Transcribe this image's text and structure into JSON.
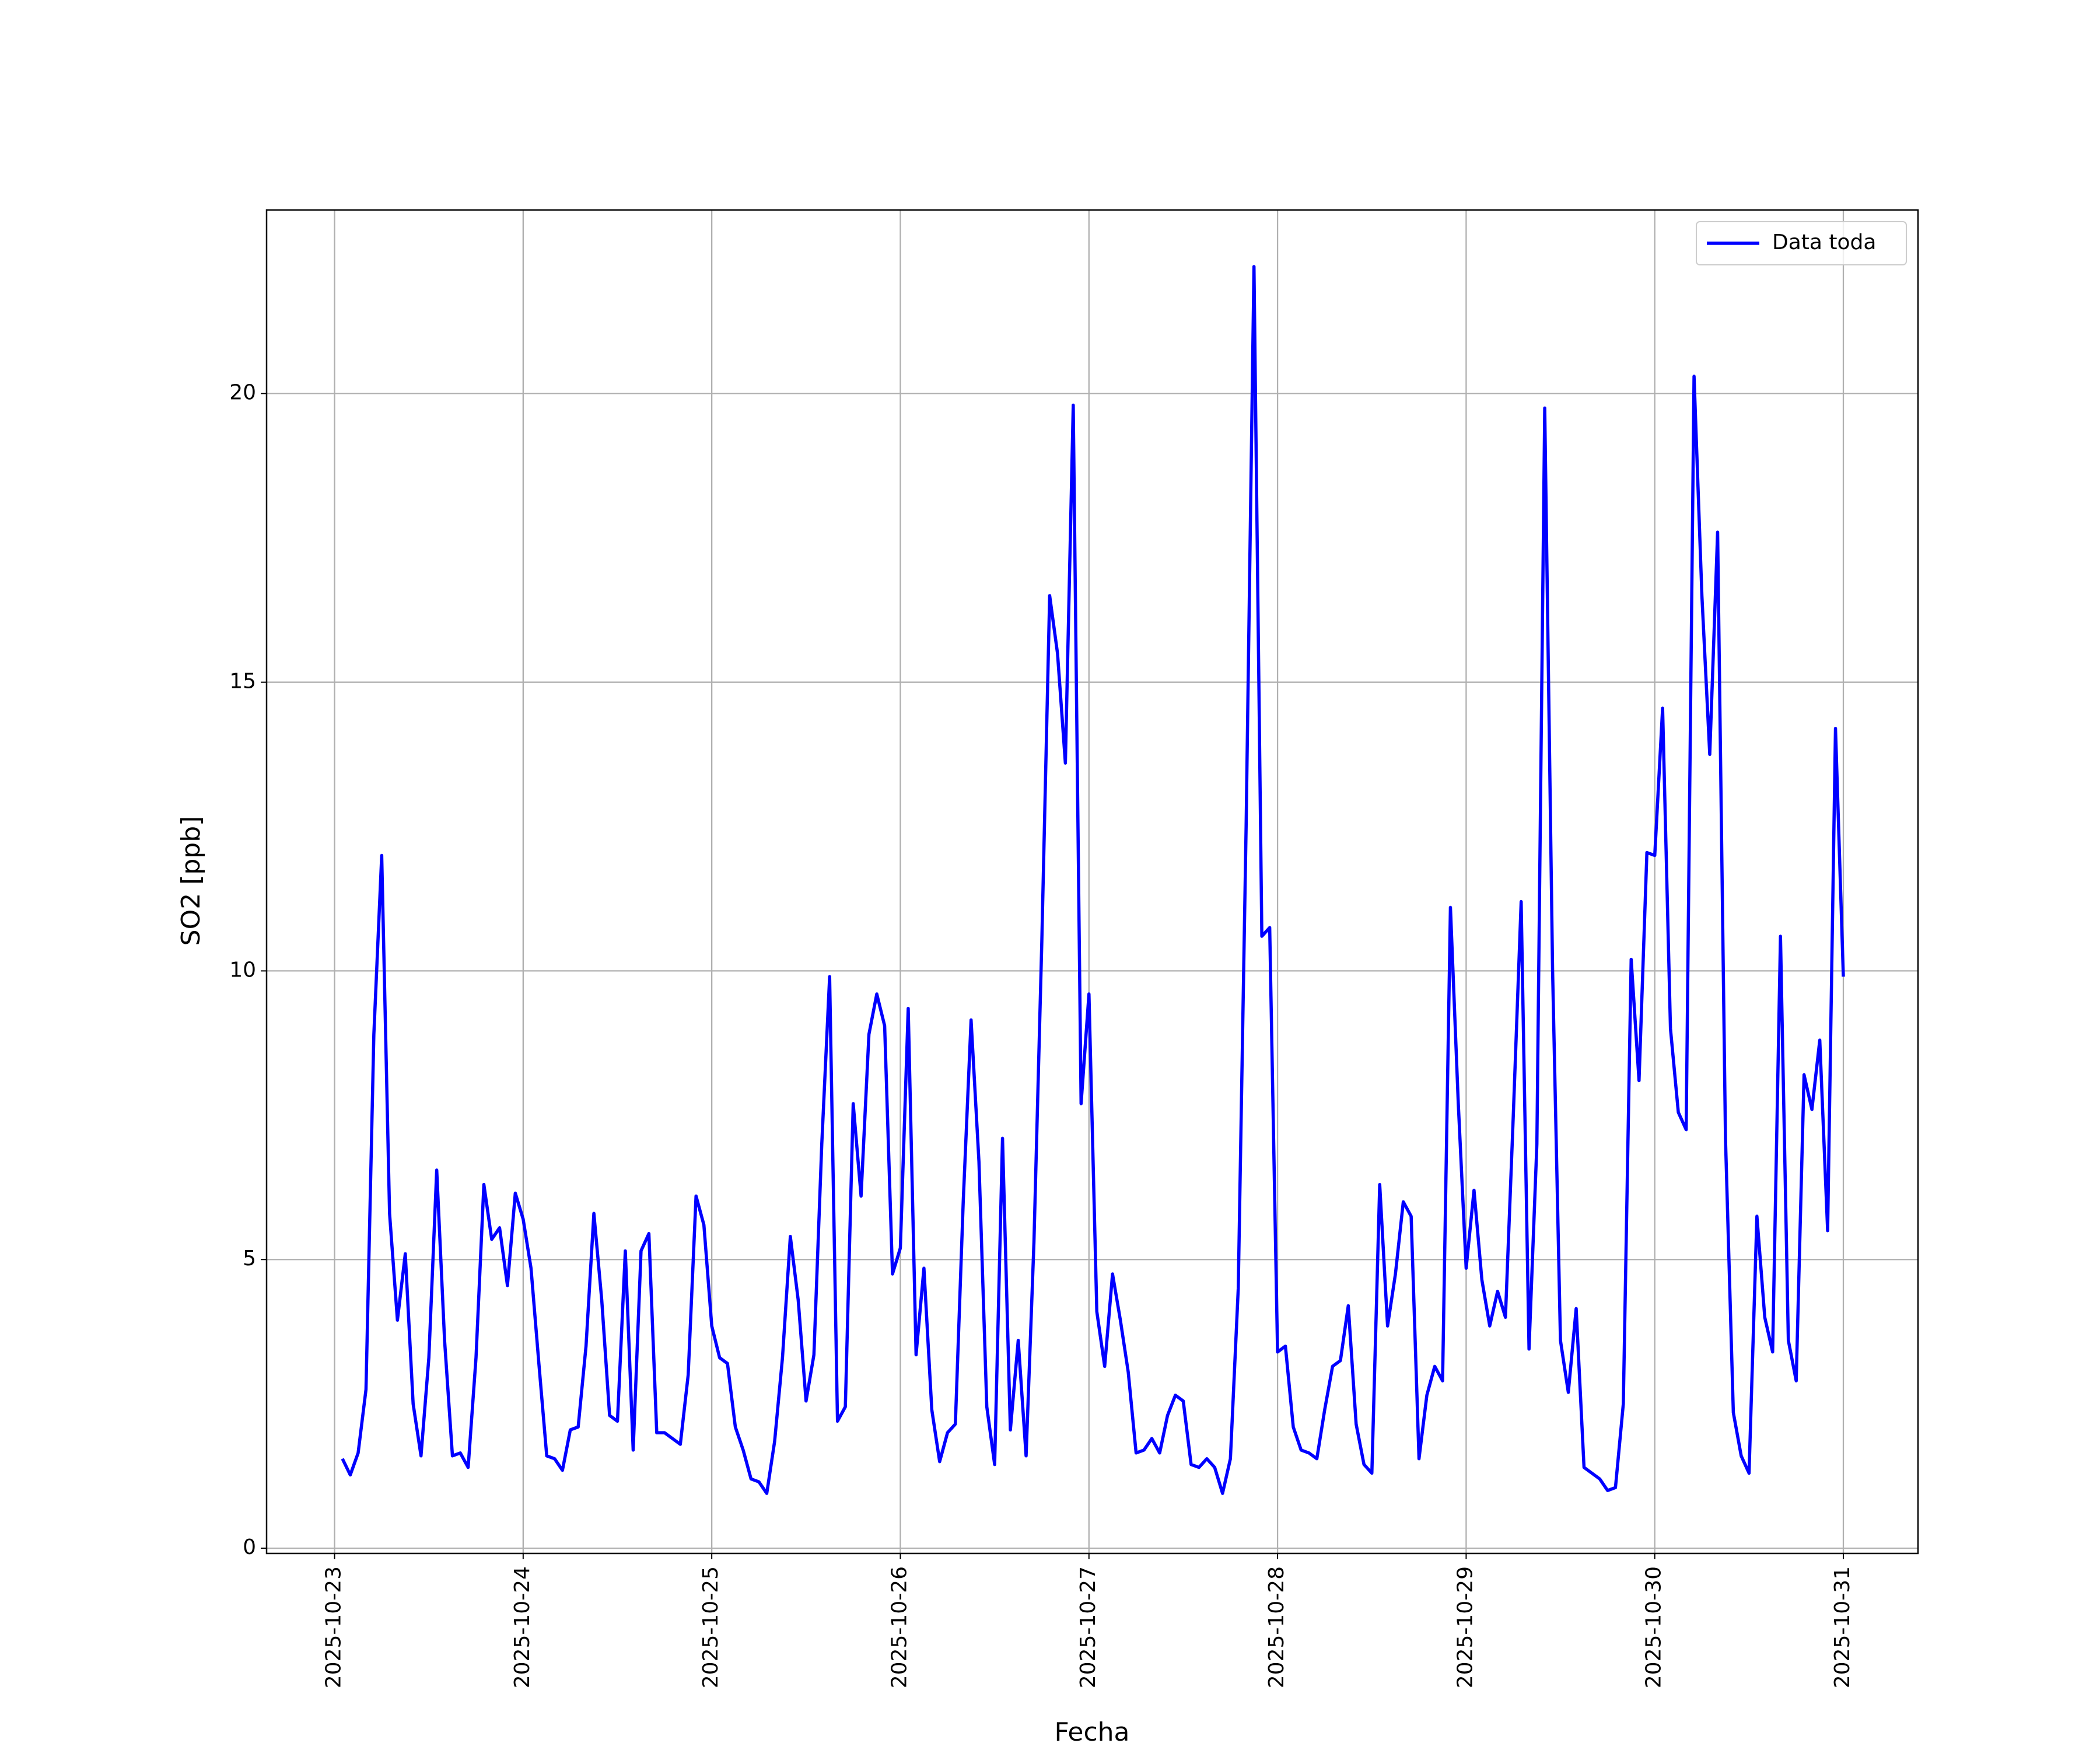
{
  "chart_data": {
    "type": "line",
    "xlabel": "Fecha",
    "ylabel": "SO2 [ppb]",
    "x": [
      1,
      2,
      3,
      4,
      5,
      6,
      7,
      8,
      9,
      10,
      11,
      12,
      13,
      14,
      15,
      16,
      17,
      18,
      19,
      20,
      21,
      22,
      23,
      24,
      25,
      26,
      27,
      28,
      29,
      30,
      31,
      32,
      33,
      34,
      35,
      36,
      37,
      38,
      39,
      40,
      41,
      42,
      43,
      44,
      45,
      46,
      47,
      48,
      49,
      50,
      51,
      52,
      53,
      54,
      55,
      56,
      57,
      58,
      59,
      60,
      61,
      62,
      63,
      64,
      65,
      66,
      67,
      68,
      69,
      70,
      71,
      72,
      73,
      74,
      75,
      76,
      77,
      78,
      79,
      80,
      81,
      82,
      83,
      84,
      85,
      86,
      87,
      88,
      89,
      90,
      91,
      92,
      93,
      94,
      95,
      96,
      97,
      98,
      99,
      100,
      101,
      102,
      103,
      104,
      105,
      106,
      107,
      108,
      109,
      110,
      111,
      112,
      113,
      114,
      115,
      116,
      117,
      118,
      119,
      120,
      121,
      122,
      123,
      124,
      125,
      126,
      127,
      128,
      129,
      130,
      131,
      132,
      133,
      134,
      135,
      136,
      137,
      138,
      139,
      140,
      141,
      142,
      143,
      144,
      145,
      146,
      147,
      148,
      149,
      150,
      151,
      152,
      153,
      154,
      155,
      156,
      157,
      158,
      159,
      160,
      161,
      162,
      163,
      164,
      165,
      166,
      167,
      168,
      169,
      170,
      171,
      172,
      173,
      174,
      175,
      176,
      177,
      178,
      179,
      180,
      181,
      182,
      183,
      184,
      185,
      186,
      187,
      188,
      189,
      190,
      191,
      192
    ],
    "series": [
      {
        "name": "Data toda",
        "color": "#0000ff",
        "values": [
          1.55,
          1.27,
          1.65,
          2.75,
          8.9,
          12.0,
          5.8,
          3.95,
          5.1,
          2.5,
          1.6,
          3.3,
          6.55,
          3.6,
          1.6,
          1.65,
          1.4,
          3.3,
          6.3,
          5.35,
          5.55,
          4.55,
          6.15,
          5.7,
          4.85,
          3.2,
          1.6,
          1.55,
          1.35,
          2.05,
          2.1,
          3.5,
          5.8,
          4.3,
          2.3,
          2.2,
          5.15,
          1.7,
          5.15,
          5.45,
          2.0,
          2.0,
          1.9,
          1.8,
          3.0,
          6.1,
          5.6,
          3.85,
          3.3,
          3.2,
          2.1,
          1.7,
          1.2,
          1.15,
          0.95,
          1.85,
          3.3,
          5.4,
          4.3,
          2.55,
          3.35,
          7.0,
          9.9,
          2.2,
          2.45,
          7.7,
          6.1,
          8.9,
          9.6,
          9.05,
          4.75,
          5.2,
          9.35,
          3.35,
          4.85,
          2.4,
          1.5,
          2.0,
          2.15,
          6.0,
          9.15,
          6.7,
          2.45,
          1.45,
          7.1,
          2.05,
          3.6,
          1.6,
          5.3,
          10.5,
          16.5,
          15.5,
          13.6,
          19.8,
          7.7,
          9.6,
          4.1,
          3.15,
          4.75,
          3.95,
          3.05,
          1.65,
          1.7,
          1.9,
          1.65,
          2.3,
          2.65,
          2.55,
          1.45,
          1.4,
          1.55,
          1.4,
          0.95,
          1.55,
          4.5,
          12.5,
          22.2,
          10.6,
          10.75,
          3.4,
          3.5,
          2.1,
          1.7,
          1.65,
          1.55,
          2.4,
          3.15,
          3.25,
          4.2,
          2.15,
          1.45,
          1.3,
          6.3,
          3.85,
          4.75,
          6.0,
          5.75,
          1.55,
          2.65,
          3.15,
          2.9,
          11.1,
          7.7,
          4.85,
          6.2,
          4.65,
          3.85,
          4.45,
          4.0,
          7.5,
          11.2,
          3.45,
          7.0,
          19.75,
          10.0,
          3.6,
          2.7,
          4.15,
          1.4,
          1.3,
          1.2,
          1.0,
          1.05,
          2.5,
          10.2,
          8.1,
          12.05,
          12.0,
          14.55,
          9.0,
          7.55,
          7.25,
          20.3,
          16.5,
          13.75,
          17.6,
          7.1,
          2.35,
          1.6,
          1.3,
          5.75,
          4.0,
          3.4,
          10.6,
          3.6,
          2.9,
          8.2,
          7.6,
          8.8,
          5.5,
          14.2,
          9.9
        ]
      }
    ],
    "xlim": [
      -8.65,
      201.5
    ],
    "xticks": [
      {
        "value": 0,
        "label": "2025-10-23"
      },
      {
        "value": 24,
        "label": "2025-10-24"
      },
      {
        "value": 48,
        "label": "2025-10-25"
      },
      {
        "value": 72,
        "label": "2025-10-26"
      },
      {
        "value": 96,
        "label": "2025-10-27"
      },
      {
        "value": 120,
        "label": "2025-10-28"
      },
      {
        "value": 144,
        "label": "2025-10-29"
      },
      {
        "value": 168,
        "label": "2025-10-30"
      },
      {
        "value": 192,
        "label": "2025-10-31"
      }
    ],
    "ylim": [
      -0.09,
      23.18
    ],
    "yticks": [
      0,
      5,
      10,
      15,
      20
    ],
    "grid": true,
    "legend": "upper right"
  }
}
